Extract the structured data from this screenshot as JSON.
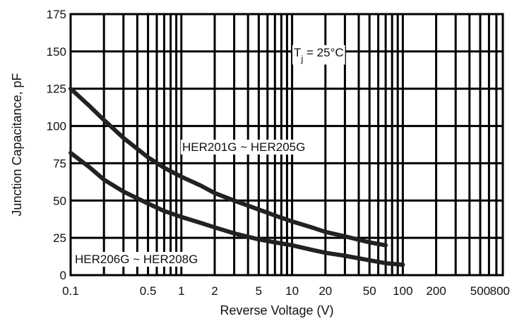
{
  "chart_data": {
    "type": "line",
    "x_scale": "log",
    "xlim": [
      0.1,
      800
    ],
    "ylim": [
      0,
      175
    ],
    "xlabel": "Reverse Voltage (V)",
    "ylabel": "Junction Capacitance, pF",
    "x_ticks": [
      {
        "value": 0.1,
        "label": "0.1"
      },
      {
        "value": 0.5,
        "label": "0.5"
      },
      {
        "value": 1,
        "label": "1"
      },
      {
        "value": 2,
        "label": "2"
      },
      {
        "value": 5,
        "label": "5"
      },
      {
        "value": 10,
        "label": "10"
      },
      {
        "value": 20,
        "label": "20"
      },
      {
        "value": 50,
        "label": "50"
      },
      {
        "value": 100,
        "label": "100"
      },
      {
        "value": 200,
        "label": "200"
      },
      {
        "value": 500,
        "label": "500"
      },
      {
        "value": 800,
        "label": "800"
      }
    ],
    "y_ticks": [
      {
        "value": 0,
        "label": "0"
      },
      {
        "value": 25,
        "label": "25"
      },
      {
        "value": 50,
        "label": "50"
      },
      {
        "value": 75,
        "label": "75"
      },
      {
        "value": 100,
        "label": "100"
      },
      {
        "value": 125,
        "label": "125"
      },
      {
        "value": 150,
        "label": "150"
      },
      {
        "value": 175,
        "label": "175"
      }
    ],
    "grid": true,
    "condition_label": {
      "main": "T",
      "sub": "j",
      "rest": " = 25°C"
    },
    "series": [
      {
        "name": "HER201G ~ HER205G",
        "x": [
          0.1,
          0.15,
          0.2,
          0.3,
          0.5,
          0.7,
          1,
          1.5,
          2,
          3,
          5,
          7,
          10,
          15,
          20,
          30,
          50,
          70
        ],
        "y": [
          125,
          113,
          104,
          92,
          79,
          72,
          66,
          60,
          55,
          50,
          44,
          40,
          36,
          32,
          29,
          26,
          22,
          20
        ]
      },
      {
        "name": "HER206G ~ HER208G",
        "x": [
          0.1,
          0.15,
          0.2,
          0.3,
          0.5,
          0.7,
          1,
          1.5,
          2,
          3,
          5,
          7,
          10,
          15,
          20,
          30,
          50,
          70,
          100
        ],
        "y": [
          82,
          72,
          64,
          56,
          48,
          43,
          39,
          35,
          32,
          28,
          24,
          22,
          20,
          17,
          15,
          13,
          10,
          8,
          7
        ]
      }
    ]
  }
}
